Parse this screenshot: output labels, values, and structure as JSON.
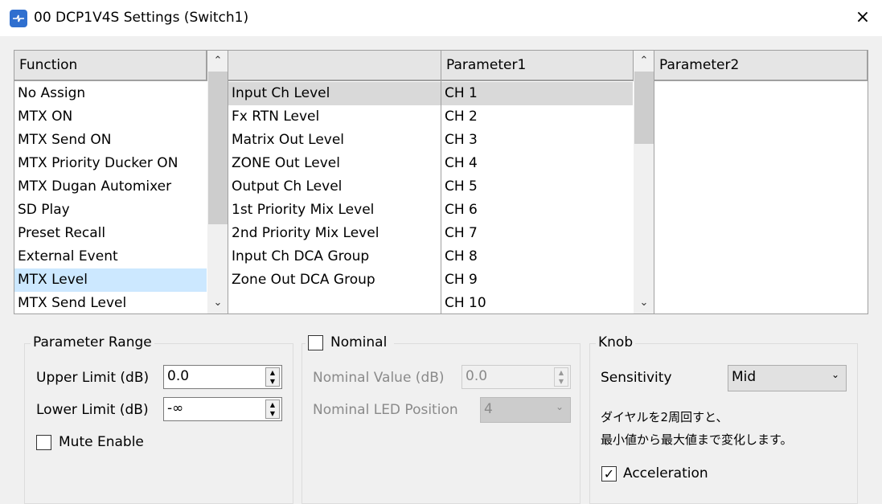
{
  "window": {
    "title": "00 DCP1V4S Settings (Switch1)",
    "close_icon": "×"
  },
  "lists": {
    "function": {
      "header": "Function",
      "items": [
        "No Assign",
        "MTX ON",
        "MTX Send ON",
        "MTX Priority Ducker ON",
        "MTX Dugan Automixer",
        "SD Play",
        "Preset Recall",
        "External Event",
        "MTX Level",
        "MTX Send Level"
      ],
      "selected": "MTX Level"
    },
    "category": {
      "header": "",
      "items": [
        "Input Ch Level",
        "Fx RTN Level",
        "Matrix Out Level",
        "ZONE Out Level",
        "Output Ch Level",
        "1st Priority Mix Level",
        "2nd Priority Mix Level",
        "Input Ch DCA Group",
        "Zone Out DCA Group"
      ],
      "selected": "Input Ch Level"
    },
    "parameter1": {
      "header": "Parameter1",
      "items": [
        "CH 1",
        "CH 2",
        "CH 3",
        "CH 4",
        "CH 5",
        "CH 6",
        "CH 7",
        "CH 8",
        "CH 9",
        "CH 10"
      ],
      "selected": "CH 1"
    },
    "parameter2": {
      "header": "Parameter2",
      "items": []
    }
  },
  "parameter_range": {
    "title": "Parameter Range",
    "upper_label": "Upper Limit (dB)",
    "upper_value": "0.0",
    "lower_label": "Lower Limit (dB)",
    "lower_value": "-∞",
    "mute_label": "Mute Enable",
    "mute_checked": false
  },
  "nominal": {
    "title": "Nominal",
    "checked": false,
    "value_label": "Nominal Value (dB)",
    "value": "0.0",
    "led_label": "Nominal LED Position",
    "led_value": "4"
  },
  "knob": {
    "title": "Knob",
    "sensitivity_label": "Sensitivity",
    "sensitivity_value": "Mid",
    "note_line1": "ダイヤルを2周回すと、",
    "note_line2": "最小値から最大値まで変化します。",
    "acceleration_label": "Acceleration",
    "acceleration_checked": true
  }
}
